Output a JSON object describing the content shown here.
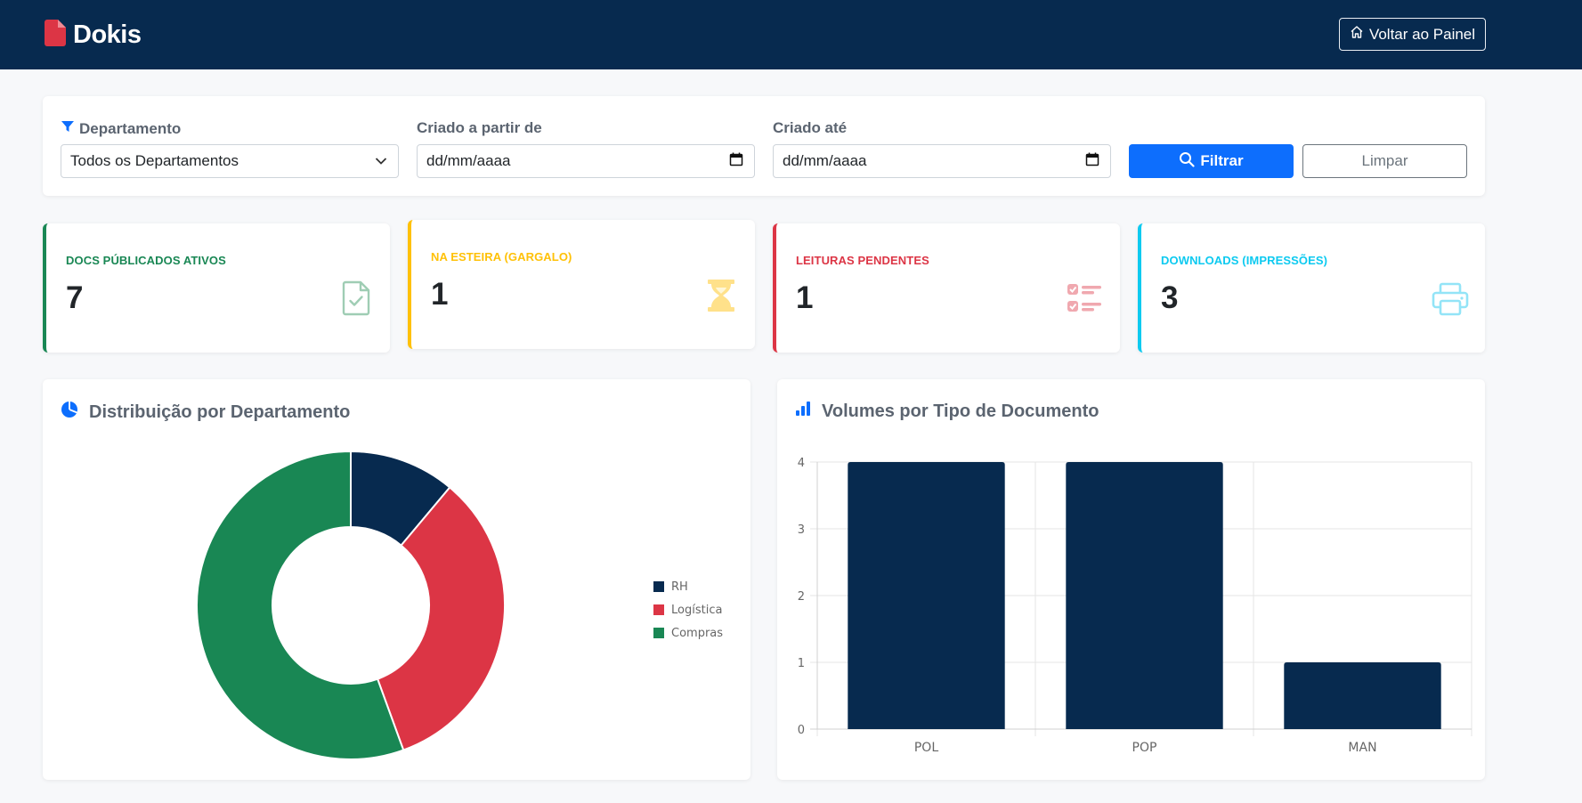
{
  "header": {
    "brand": "Dokis",
    "back_button_label": "Voltar ao Painel"
  },
  "filters": {
    "department": {
      "label": "Departamento",
      "selected": "Todos os Departamentos"
    },
    "created_from": {
      "label": "Criado a partir de",
      "value": "dd/mm/aaaa"
    },
    "created_until": {
      "label": "Criado até",
      "value": "dd/mm/aaaa"
    },
    "filter_button_label": "Filtrar",
    "clear_button_label": "Limpar"
  },
  "stats": [
    {
      "label": "DOCS PÚBLICADOS ATIVOS",
      "value": "7",
      "color": "#198754",
      "icon": "file-check-icon"
    },
    {
      "label": "NA ESTEIRA (GARGALO)",
      "value": "1",
      "color": "#ffc107",
      "icon": "hourglass-icon"
    },
    {
      "label": "LEITURAS PENDENTES",
      "value": "1",
      "color": "#dc3545",
      "icon": "checklist-icon"
    },
    {
      "label": "DOWNLOADS (IMPRESSÕES)",
      "value": "3",
      "color": "#0dcaf0",
      "icon": "printer-icon"
    }
  ],
  "charts": {
    "department": {
      "title": "Distribuição por Departamento"
    },
    "doc_type": {
      "title": "Volumes por Tipo de Documento"
    }
  },
  "chart_data": [
    {
      "type": "pie",
      "variant": "doughnut",
      "title": "Distribuição por Departamento",
      "labels": [
        "RH",
        "Logística",
        "Compras"
      ],
      "values": [
        1,
        3,
        5
      ],
      "colors": [
        "#072a4f",
        "#dc3545",
        "#198754"
      ],
      "legend": "right"
    },
    {
      "type": "bar",
      "title": "Volumes por Tipo de Documento",
      "categories": [
        "POL",
        "POP",
        "MAN"
      ],
      "values": [
        4,
        4,
        1
      ],
      "color": "#072a4f",
      "ylim": [
        0,
        4
      ],
      "yticks": [
        "0",
        "1",
        "2",
        "3",
        "4"
      ],
      "grid": true,
      "legend": "none"
    }
  ]
}
